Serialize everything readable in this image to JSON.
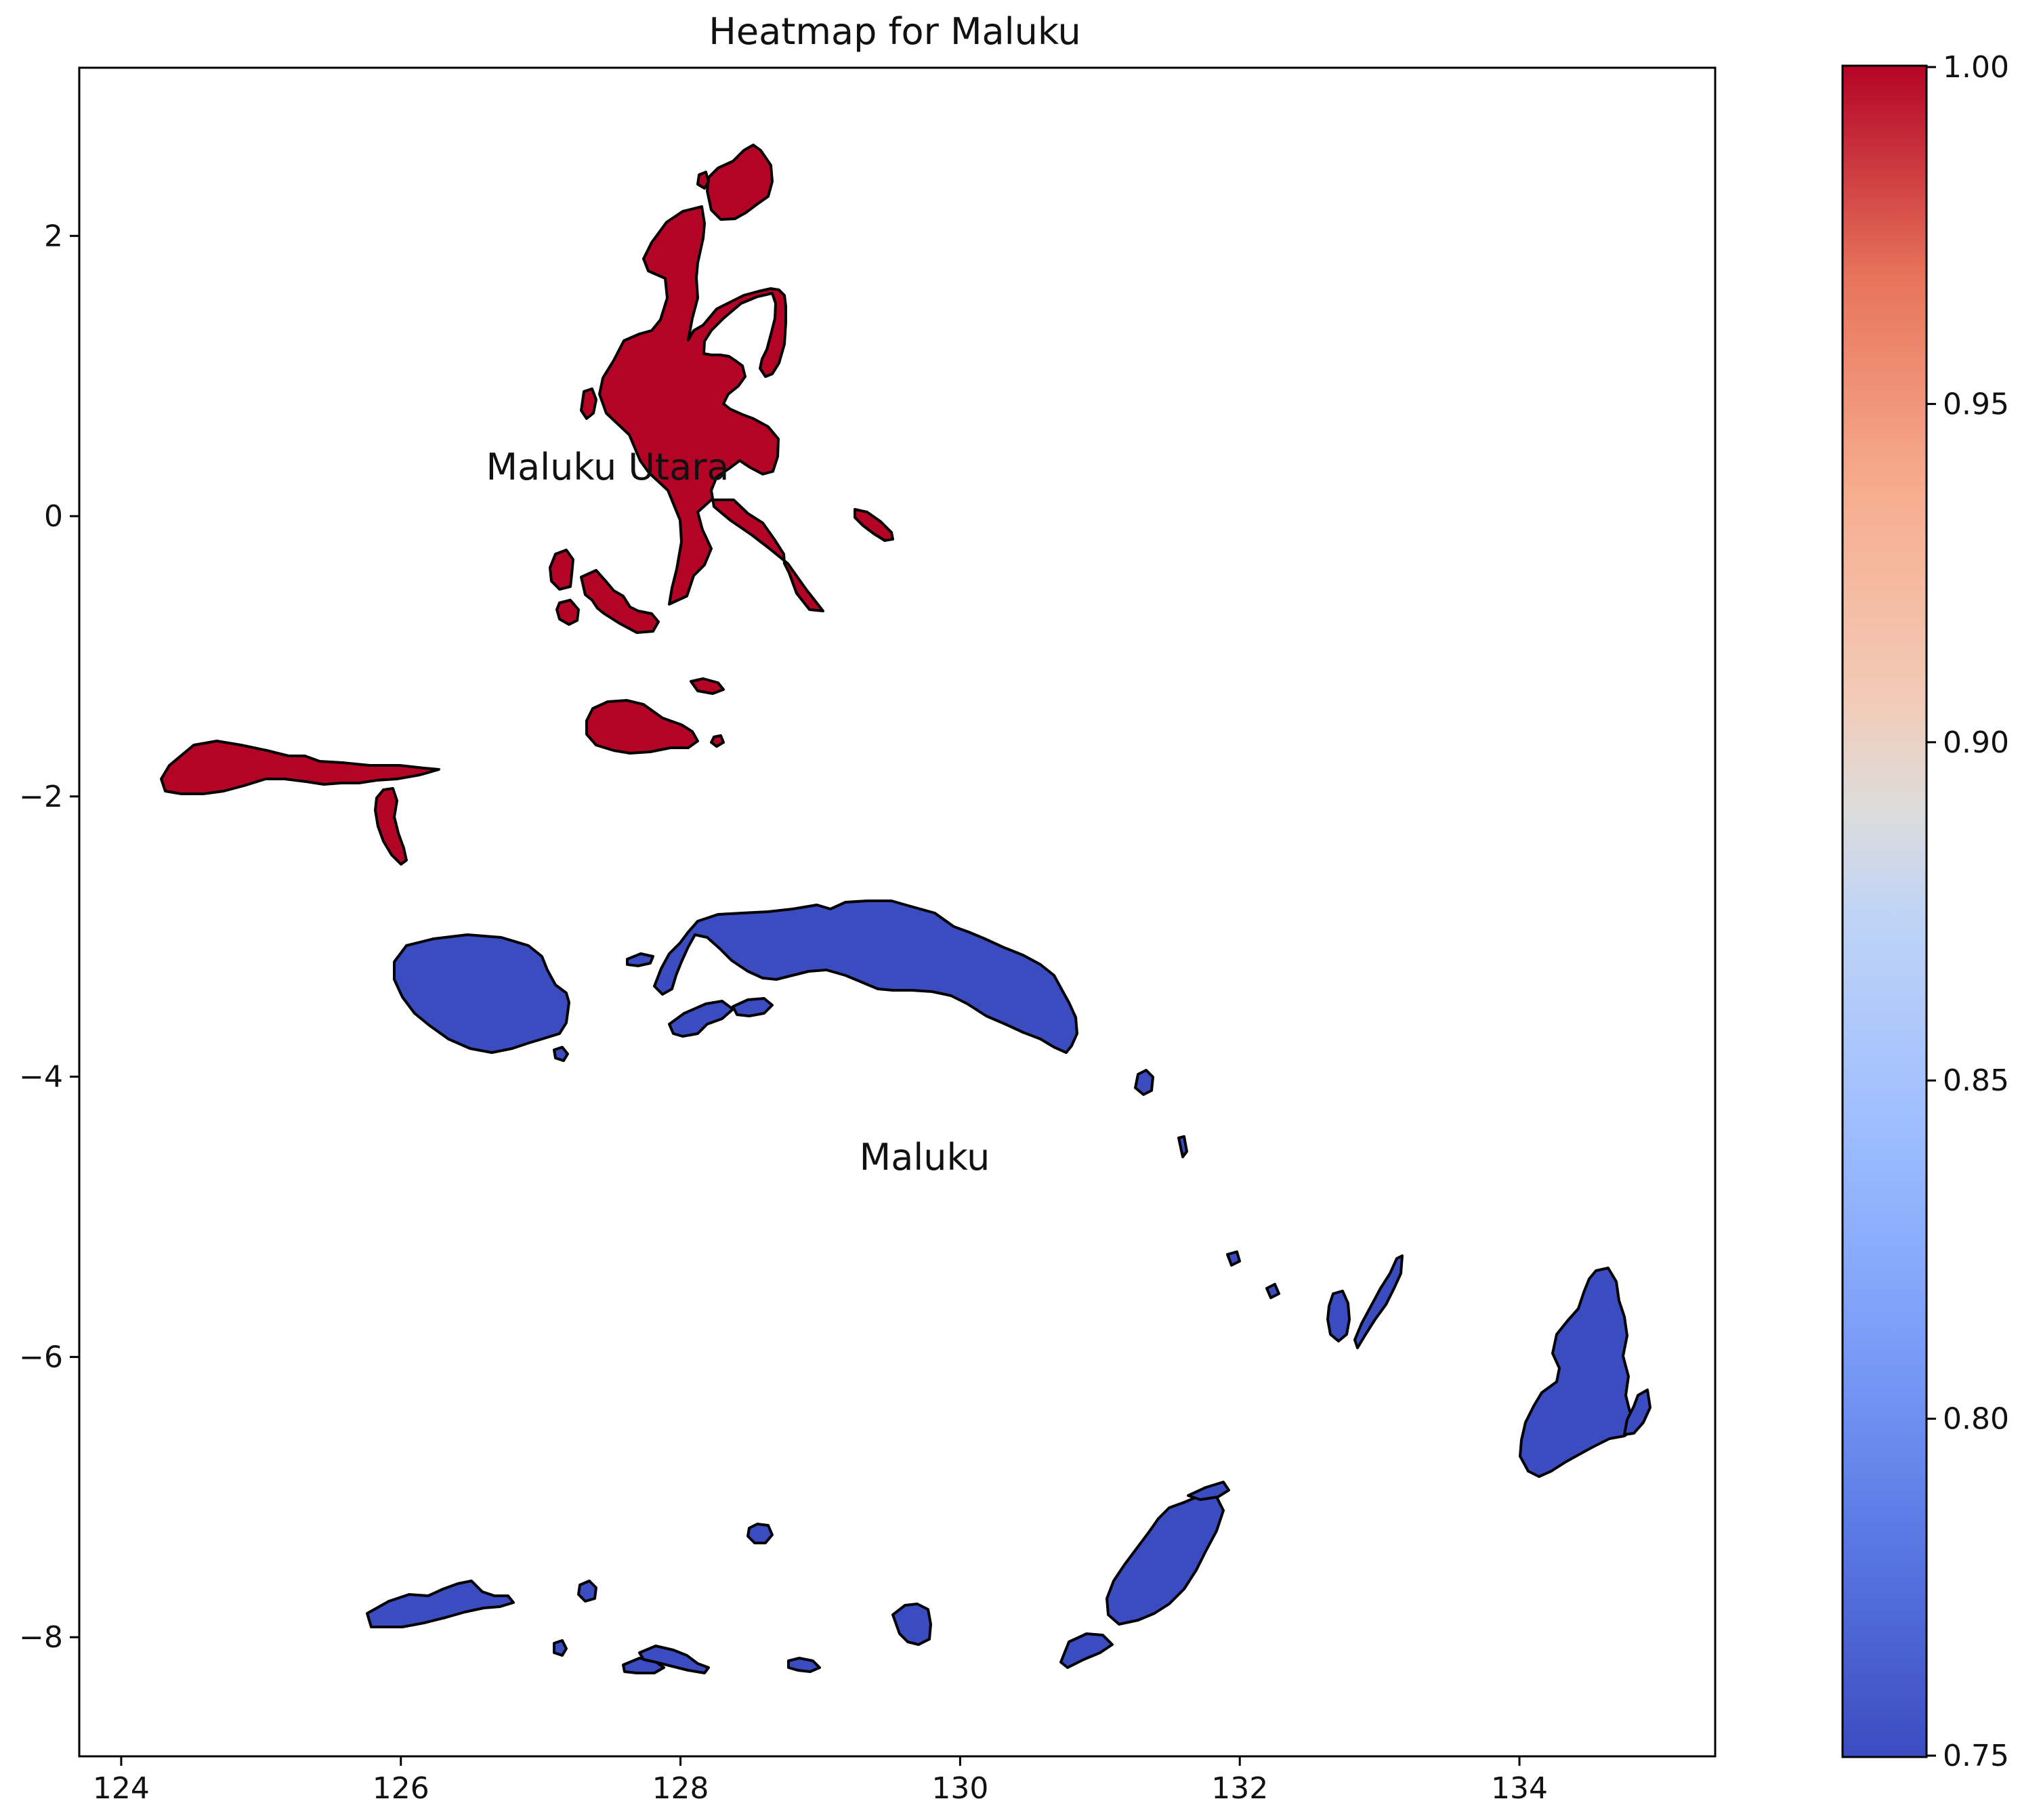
{
  "chart_data": {
    "type": "heatmap",
    "title": "Heatmap for Maluku",
    "xlabel": "",
    "ylabel": "",
    "xlim": [
      123.7,
      135.4
    ],
    "ylim": [
      -8.85,
      3.2
    ],
    "x_ticks": [
      "124",
      "126",
      "128",
      "130",
      "132",
      "134"
    ],
    "y_ticks": [
      "2",
      "0",
      "−2",
      "−4",
      "−6",
      "−8"
    ],
    "x_tick_values": [
      124,
      126,
      128,
      130,
      132,
      134
    ],
    "y_tick_values": [
      2,
      0,
      -2,
      -4,
      -6,
      -8
    ],
    "colorbar": {
      "colormap": "coolwarm",
      "range": [
        0.75,
        1.0
      ],
      "ticks": [
        "1.00",
        "0.95",
        "0.90",
        "0.85",
        "0.80",
        "0.75"
      ],
      "tick_values": [
        1.0,
        0.95,
        0.9,
        0.85,
        0.8,
        0.75
      ]
    },
    "regions": [
      {
        "name": "Maluku Utara",
        "value": 1.0,
        "color": "#b40426",
        "label_lon": 127.55,
        "label_lat": 0.3
      },
      {
        "name": "Maluku",
        "value": 0.75,
        "color": "#3b4cc0",
        "label_lon": 129.85,
        "label_lat": -4.62
      }
    ],
    "grid": false
  }
}
